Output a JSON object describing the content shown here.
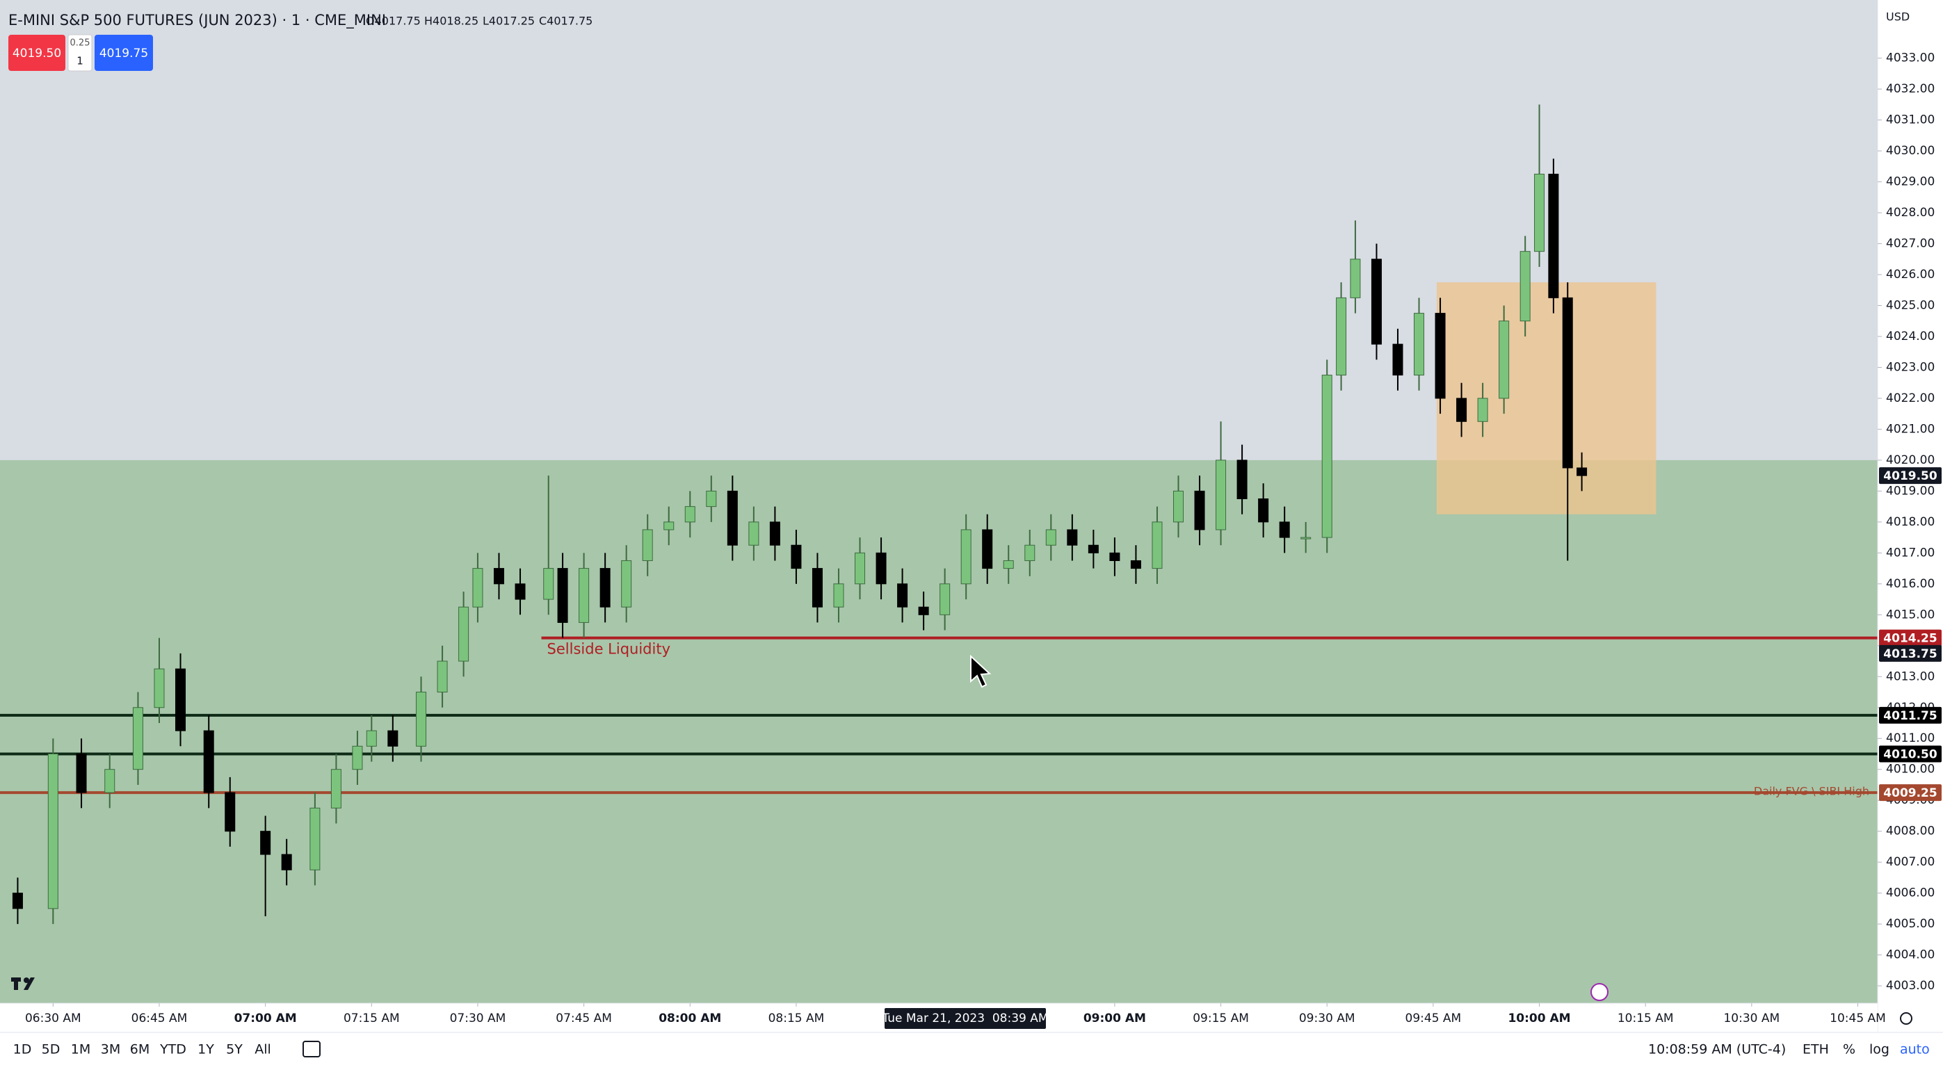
{
  "header": {
    "title": "E-MINI S&P 500 FUTURES (JUN 2023) · 1 · CME_MINI",
    "ohlc": {
      "open": "O4017.75",
      "high": "H4018.25",
      "low": "L4017.25",
      "close": "C4017.75"
    }
  },
  "order_panel": {
    "sell": "4019.50",
    "tick": "0.25",
    "qty": "1",
    "buy": "4019.75"
  },
  "currency": "USD",
  "chart_data": {
    "type": "candlestick",
    "x": [
      385,
      390,
      394,
      398,
      402,
      405,
      408,
      412,
      415,
      420,
      423,
      427,
      430,
      433,
      435,
      438,
      442,
      445,
      448,
      450,
      453,
      456,
      460,
      462,
      465,
      468,
      471,
      474,
      477,
      480,
      483,
      486,
      489,
      492,
      495,
      498,
      501,
      504,
      507,
      510,
      513,
      516,
      519,
      522,
      525,
      528,
      531,
      534,
      537,
      540,
      543,
      546,
      549,
      552,
      555,
      558,
      561,
      564,
      567,
      570,
      572,
      574,
      577,
      580,
      583,
      586,
      589,
      592,
      595,
      598,
      600,
      602,
      604,
      606
    ],
    "open": [
      4006.0,
      4005.5,
      4010.5,
      4009.25,
      4010.0,
      4012.0,
      4013.25,
      4011.25,
      4009.25,
      4008.0,
      4007.25,
      4006.75,
      4008.75,
      4010.0,
      4010.75,
      4011.25,
      4010.75,
      4012.5,
      4013.5,
      4015.25,
      4016.5,
      4016.0,
      4015.5,
      4016.5,
      4014.75,
      4016.5,
      4015.25,
      4016.75,
      4017.75,
      4018.0,
      4018.5,
      4019.0,
      4017.25,
      4018.0,
      4017.25,
      4016.5,
      4015.25,
      4016.0,
      4017.0,
      4016.0,
      4015.25,
      4015.0,
      4016.0,
      4017.75,
      4016.5,
      4016.75,
      4017.25,
      4017.75,
      4017.25,
      4017.0,
      4016.75,
      4016.5,
      4018.0,
      4019.0,
      4017.75,
      4020.0,
      4018.75,
      4018.0,
      4017.5,
      4017.5,
      4022.75,
      4025.25,
      4026.5,
      4023.75,
      4022.75,
      4024.75,
      4022.0,
      4021.25,
      4022.0,
      4024.5,
      4026.75,
      4029.25,
      4025.25,
      4019.75
    ],
    "high": [
      4006.5,
      4011.0,
      4011.0,
      4010.5,
      4012.5,
      4014.25,
      4013.75,
      4011.75,
      4009.75,
      4008.5,
      4007.75,
      4009.25,
      4010.5,
      4011.25,
      4011.75,
      4011.75,
      4013.0,
      4014.0,
      4015.75,
      4017.0,
      4017.0,
      4016.5,
      4019.5,
      4017.0,
      4017.0,
      4017.0,
      4017.25,
      4018.25,
      4018.5,
      4019.0,
      4019.5,
      4019.5,
      4018.5,
      4018.5,
      4017.75,
      4017.0,
      4016.5,
      4017.5,
      4017.5,
      4016.5,
      4015.75,
      4016.5,
      4018.25,
      4018.25,
      4017.25,
      4017.75,
      4018.25,
      4018.25,
      4017.75,
      4017.5,
      4017.25,
      4018.5,
      4019.5,
      4019.5,
      4021.25,
      4020.5,
      4019.25,
      4018.5,
      4018.0,
      4023.25,
      4025.75,
      4027.75,
      4027.0,
      4024.25,
      4025.25,
      4025.25,
      4022.5,
      4022.5,
      4025.0,
      4027.25,
      4031.5,
      4029.75,
      4025.75,
      4020.25
    ],
    "low": [
      4005.0,
      4005.0,
      4008.75,
      4008.75,
      4009.5,
      4011.5,
      4010.75,
      4008.75,
      4007.5,
      4005.25,
      4006.25,
      4006.25,
      4008.25,
      4009.5,
      4010.25,
      4010.25,
      4010.25,
      4012.0,
      4013.0,
      4014.75,
      4015.5,
      4015.0,
      4015.0,
      4014.25,
      4014.25,
      4014.75,
      4014.75,
      4016.25,
      4017.25,
      4017.5,
      4018.0,
      4016.75,
      4016.75,
      4016.75,
      4016.0,
      4014.75,
      4014.75,
      4015.5,
      4015.5,
      4014.75,
      4014.5,
      4014.5,
      4015.5,
      4016.0,
      4016.0,
      4016.25,
      4016.75,
      4016.75,
      4016.5,
      4016.25,
      4016.0,
      4016.0,
      4017.5,
      4017.25,
      4017.25,
      4018.25,
      4017.5,
      4017.0,
      4017.0,
      4017.0,
      4022.25,
      4024.75,
      4023.25,
      4022.25,
      4022.25,
      4021.5,
      4020.75,
      4020.75,
      4021.5,
      4024.0,
      4026.25,
      4024.75,
      4016.75,
      4019.0
    ],
    "close": [
      4005.5,
      4010.5,
      4009.25,
      4010.0,
      4012.0,
      4013.25,
      4011.25,
      4009.25,
      4008.0,
      4007.25,
      4006.75,
      4008.75,
      4010.0,
      4010.75,
      4011.25,
      4010.75,
      4012.5,
      4013.5,
      4015.25,
      4016.5,
      4016.0,
      4015.5,
      4016.5,
      4014.75,
      4016.5,
      4015.25,
      4016.75,
      4017.75,
      4018.0,
      4018.5,
      4019.0,
      4017.25,
      4018.0,
      4017.25,
      4016.5,
      4015.25,
      4016.0,
      4017.0,
      4016.0,
      4015.25,
      4015.0,
      4016.0,
      4017.75,
      4016.5,
      4016.75,
      4017.25,
      4017.75,
      4017.25,
      4017.0,
      4016.75,
      4016.5,
      4018.0,
      4019.0,
      4017.75,
      4020.0,
      4018.75,
      4018.0,
      4017.5,
      4017.5,
      4022.75,
      4025.25,
      4026.5,
      4023.75,
      4022.75,
      4024.75,
      4022.0,
      4021.25,
      4022.0,
      4024.5,
      4026.75,
      4029.25,
      4025.25,
      4019.75,
      4019.5
    ],
    "up_color": "#7cc47e",
    "down_color": "#000000",
    "xlim": [
      382.5,
      647.8
    ],
    "ylim": [
      4002.44,
      4034.88
    ],
    "xticks": [
      {
        "value": 390,
        "label": "06:30 AM"
      },
      {
        "value": 405,
        "label": "06:45 AM"
      },
      {
        "value": 420,
        "label": "07:00 AM"
      },
      {
        "value": 435,
        "label": "07:15 AM"
      },
      {
        "value": 450,
        "label": "07:30 AM"
      },
      {
        "value": 465,
        "label": "07:45 AM"
      },
      {
        "value": 480,
        "label": "08:00 AM"
      },
      {
        "value": 495,
        "label": "08:15 AM"
      },
      {
        "value": 540,
        "label": "09:00 AM"
      },
      {
        "value": 555,
        "label": "09:15 AM"
      },
      {
        "value": 570,
        "label": "09:30 AM"
      },
      {
        "value": 585,
        "label": "09:45 AM"
      },
      {
        "value": 600,
        "label": "10:00 AM"
      },
      {
        "value": 615,
        "label": "10:15 AM"
      },
      {
        "value": 630,
        "label": "10:30 AM"
      },
      {
        "value": 645,
        "label": "10:45 AM"
      }
    ],
    "yticks": [
      {
        "value": 4003,
        "label": "4003.00"
      },
      {
        "value": 4004,
        "label": "4004.00"
      },
      {
        "value": 4005,
        "label": "4005.00"
      },
      {
        "value": 4006,
        "label": "4006.00"
      },
      {
        "value": 4007,
        "label": "4007.00"
      },
      {
        "value": 4008,
        "label": "4008.00"
      },
      {
        "value": 4009,
        "label": "4009.00"
      },
      {
        "value": 4010,
        "label": "4010.00"
      },
      {
        "value": 4011,
        "label": "4011.00"
      },
      {
        "value": 4012,
        "label": "4012.00"
      },
      {
        "value": 4013,
        "label": "4013.00"
      },
      {
        "value": 4014,
        "label": "4014.00"
      },
      {
        "value": 4015,
        "label": "4015.00"
      },
      {
        "value": 4016,
        "label": "4016.00"
      },
      {
        "value": 4017,
        "label": "4017.00"
      },
      {
        "value": 4018,
        "label": "4018.00"
      },
      {
        "value": 4019,
        "label": "4019.00"
      },
      {
        "value": 4020,
        "label": "4020.00"
      },
      {
        "value": 4021,
        "label": "4021.00"
      },
      {
        "value": 4022,
        "label": "4022.00"
      },
      {
        "value": 4023,
        "label": "4023.00"
      },
      {
        "value": 4024,
        "label": "4024.00"
      },
      {
        "value": 4025,
        "label": "4025.00"
      },
      {
        "value": 4026,
        "label": "4026.00"
      },
      {
        "value": 4027,
        "label": "4027.00"
      },
      {
        "value": 4028,
        "label": "4028.00"
      },
      {
        "value": 4029,
        "label": "4029.00"
      },
      {
        "value": 4030,
        "label": "4030.00"
      },
      {
        "value": 4031,
        "label": "4031.00"
      },
      {
        "value": 4032,
        "label": "4032.00"
      },
      {
        "value": 4033,
        "label": "4033.00"
      }
    ],
    "zones": [
      {
        "top": 4020.0,
        "color": "#a8c6aa"
      }
    ],
    "boxes": [
      {
        "x": [
          585.5,
          616.5
        ],
        "y": [
          4018.25,
          4025.75
        ],
        "color": "#eec48e"
      }
    ],
    "levels": [
      {
        "value": 4014.25,
        "label": "4014.25",
        "color": "#b01e23",
        "start": 459,
        "text": "Sellside Liquidity"
      },
      {
        "value": 4011.75,
        "label": "4011.75",
        "color": "#0d2a16"
      },
      {
        "value": 4010.5,
        "label": "4010.50",
        "color": "#0d2a16"
      },
      {
        "value": 4009.25,
        "label": "4009.25",
        "color": "#a4482f",
        "text": "Daily FVG \\ SIBI High"
      }
    ],
    "last_price": {
      "value": 4019.5,
      "label": "4019.50"
    },
    "crosshair": {
      "price": {
        "value": 4013.75,
        "label": "4013.75"
      },
      "time": "Tue Mar 21, 2023  08:39 AM"
    }
  },
  "toolbar": {
    "ranges": [
      "1D",
      "5D",
      "1M",
      "3M",
      "6M",
      "YTD",
      "1Y",
      "5Y",
      "All"
    ],
    "clock": "10:08:59 AM (UTC-4)",
    "session": "ETH",
    "percent": "%",
    "log": "log",
    "auto": "auto"
  }
}
